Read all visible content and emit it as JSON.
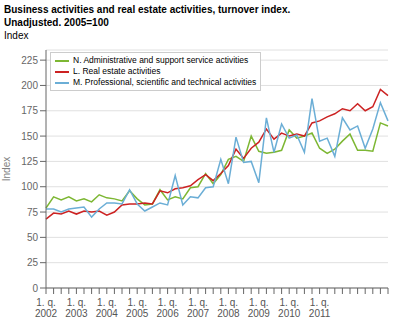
{
  "chart_data": {
    "type": "line",
    "title": "Business activities and real estate activities, turnover index.",
    "subtitle": "Unadjusted. 2005=100",
    "ylabel": "Index",
    "categories": [
      "1. q.\n2002",
      null,
      null,
      null,
      "1. q.\n2003",
      null,
      null,
      null,
      "1. q.\n2004",
      null,
      null,
      null,
      "1. q.\n2005",
      null,
      null,
      null,
      "1. q.\n2006",
      null,
      null,
      null,
      "1. q.\n2007",
      null,
      null,
      null,
      "1. q.\n2008",
      null,
      null,
      null,
      "1. q.\n2009",
      null,
      null,
      null,
      "1. q.\n2010",
      null,
      null,
      null,
      "1. q.\n2011",
      null,
      null,
      null,
      null,
      null,
      null,
      null,
      null,
      null
    ],
    "series": [
      {
        "name": "N. Administrative and support service activities",
        "color": "#7db733",
        "values": [
          79,
          90,
          87,
          90,
          86,
          88,
          85,
          92,
          89,
          88,
          86,
          96,
          88,
          82,
          83,
          97,
          87,
          90,
          88,
          99,
          100,
          113,
          103,
          112,
          127,
          130,
          125,
          150,
          135,
          133,
          134,
          136,
          156,
          148,
          150,
          153,
          138,
          133,
          137,
          145,
          152,
          136,
          136,
          135,
          163,
          160
        ]
      },
      {
        "name": "L. Real estate activities",
        "color": "#cc2222",
        "values": [
          68,
          74,
          73,
          76,
          73,
          76,
          75,
          76,
          72,
          75,
          82,
          83,
          83,
          84,
          83,
          96,
          94,
          98,
          99,
          101,
          107,
          112,
          106,
          113,
          121,
          137,
          128,
          138,
          144,
          157,
          147,
          153,
          150,
          152,
          150,
          163,
          165,
          169,
          172,
          177,
          175,
          182,
          175,
          179,
          196,
          190
        ]
      },
      {
        "name": "M. Professional, scientific and technical activities",
        "color": "#6baed6",
        "values": [
          78,
          78,
          75,
          78,
          79,
          80,
          70,
          78,
          84,
          84,
          83,
          97,
          83,
          76,
          80,
          84,
          82,
          111,
          82,
          90,
          89,
          99,
          100,
          127,
          103,
          149,
          124,
          125,
          104,
          168,
          134,
          162,
          148,
          151,
          134,
          187,
          145,
          148,
          130,
          168,
          156,
          160,
          138,
          157,
          183,
          165
        ]
      }
    ],
    "ylim": [
      0,
      235
    ],
    "yticks": [
      0,
      25,
      50,
      75,
      100,
      125,
      150,
      175,
      200,
      225
    ],
    "grid": true,
    "legend": "upper left"
  }
}
